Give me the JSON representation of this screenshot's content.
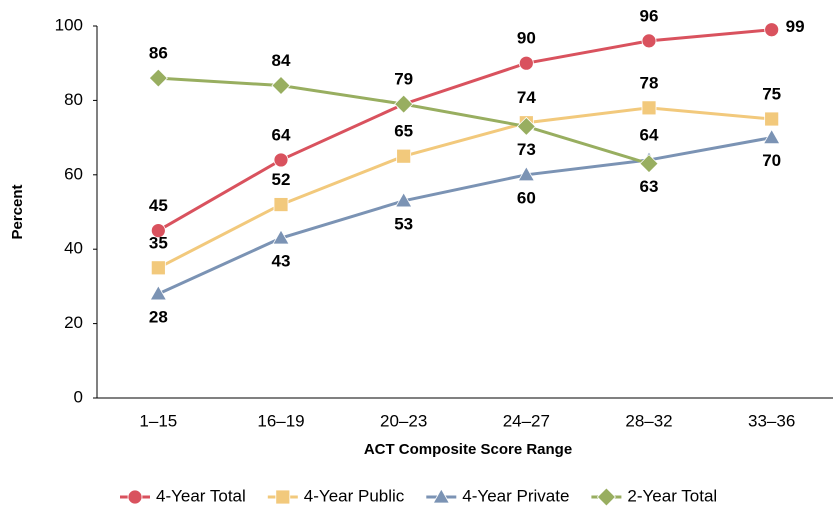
{
  "chart_data": {
    "type": "line",
    "x_label": "ACT Composite Score Range",
    "y_label": "Percent",
    "categories": [
      "1–15",
      "16–19",
      "20–23",
      "24–27",
      "28–32",
      "33–36"
    ],
    "series": [
      {
        "name": "4-Year Total",
        "color": "#d9525e",
        "marker": "circle",
        "values": [
          45,
          64,
          79,
          90,
          96,
          99
        ]
      },
      {
        "name": "4-Year Public",
        "color": "#f2c97c",
        "marker": "square",
        "values": [
          35,
          52,
          65,
          74,
          78,
          75
        ]
      },
      {
        "name": "4-Year Private",
        "color": "#7b93b4",
        "marker": "triangle",
        "values": [
          28,
          43,
          53,
          60,
          64,
          70
        ]
      },
      {
        "name": "2-Year Total",
        "color": "#98ae60",
        "marker": "diamond",
        "values": [
          86,
          84,
          79,
          73,
          63,
          null
        ]
      }
    ],
    "ylim": [
      0,
      100
    ],
    "yticks": [
      0,
      20,
      40,
      60,
      80,
      100
    ],
    "grid": false,
    "legend": "bottom"
  }
}
